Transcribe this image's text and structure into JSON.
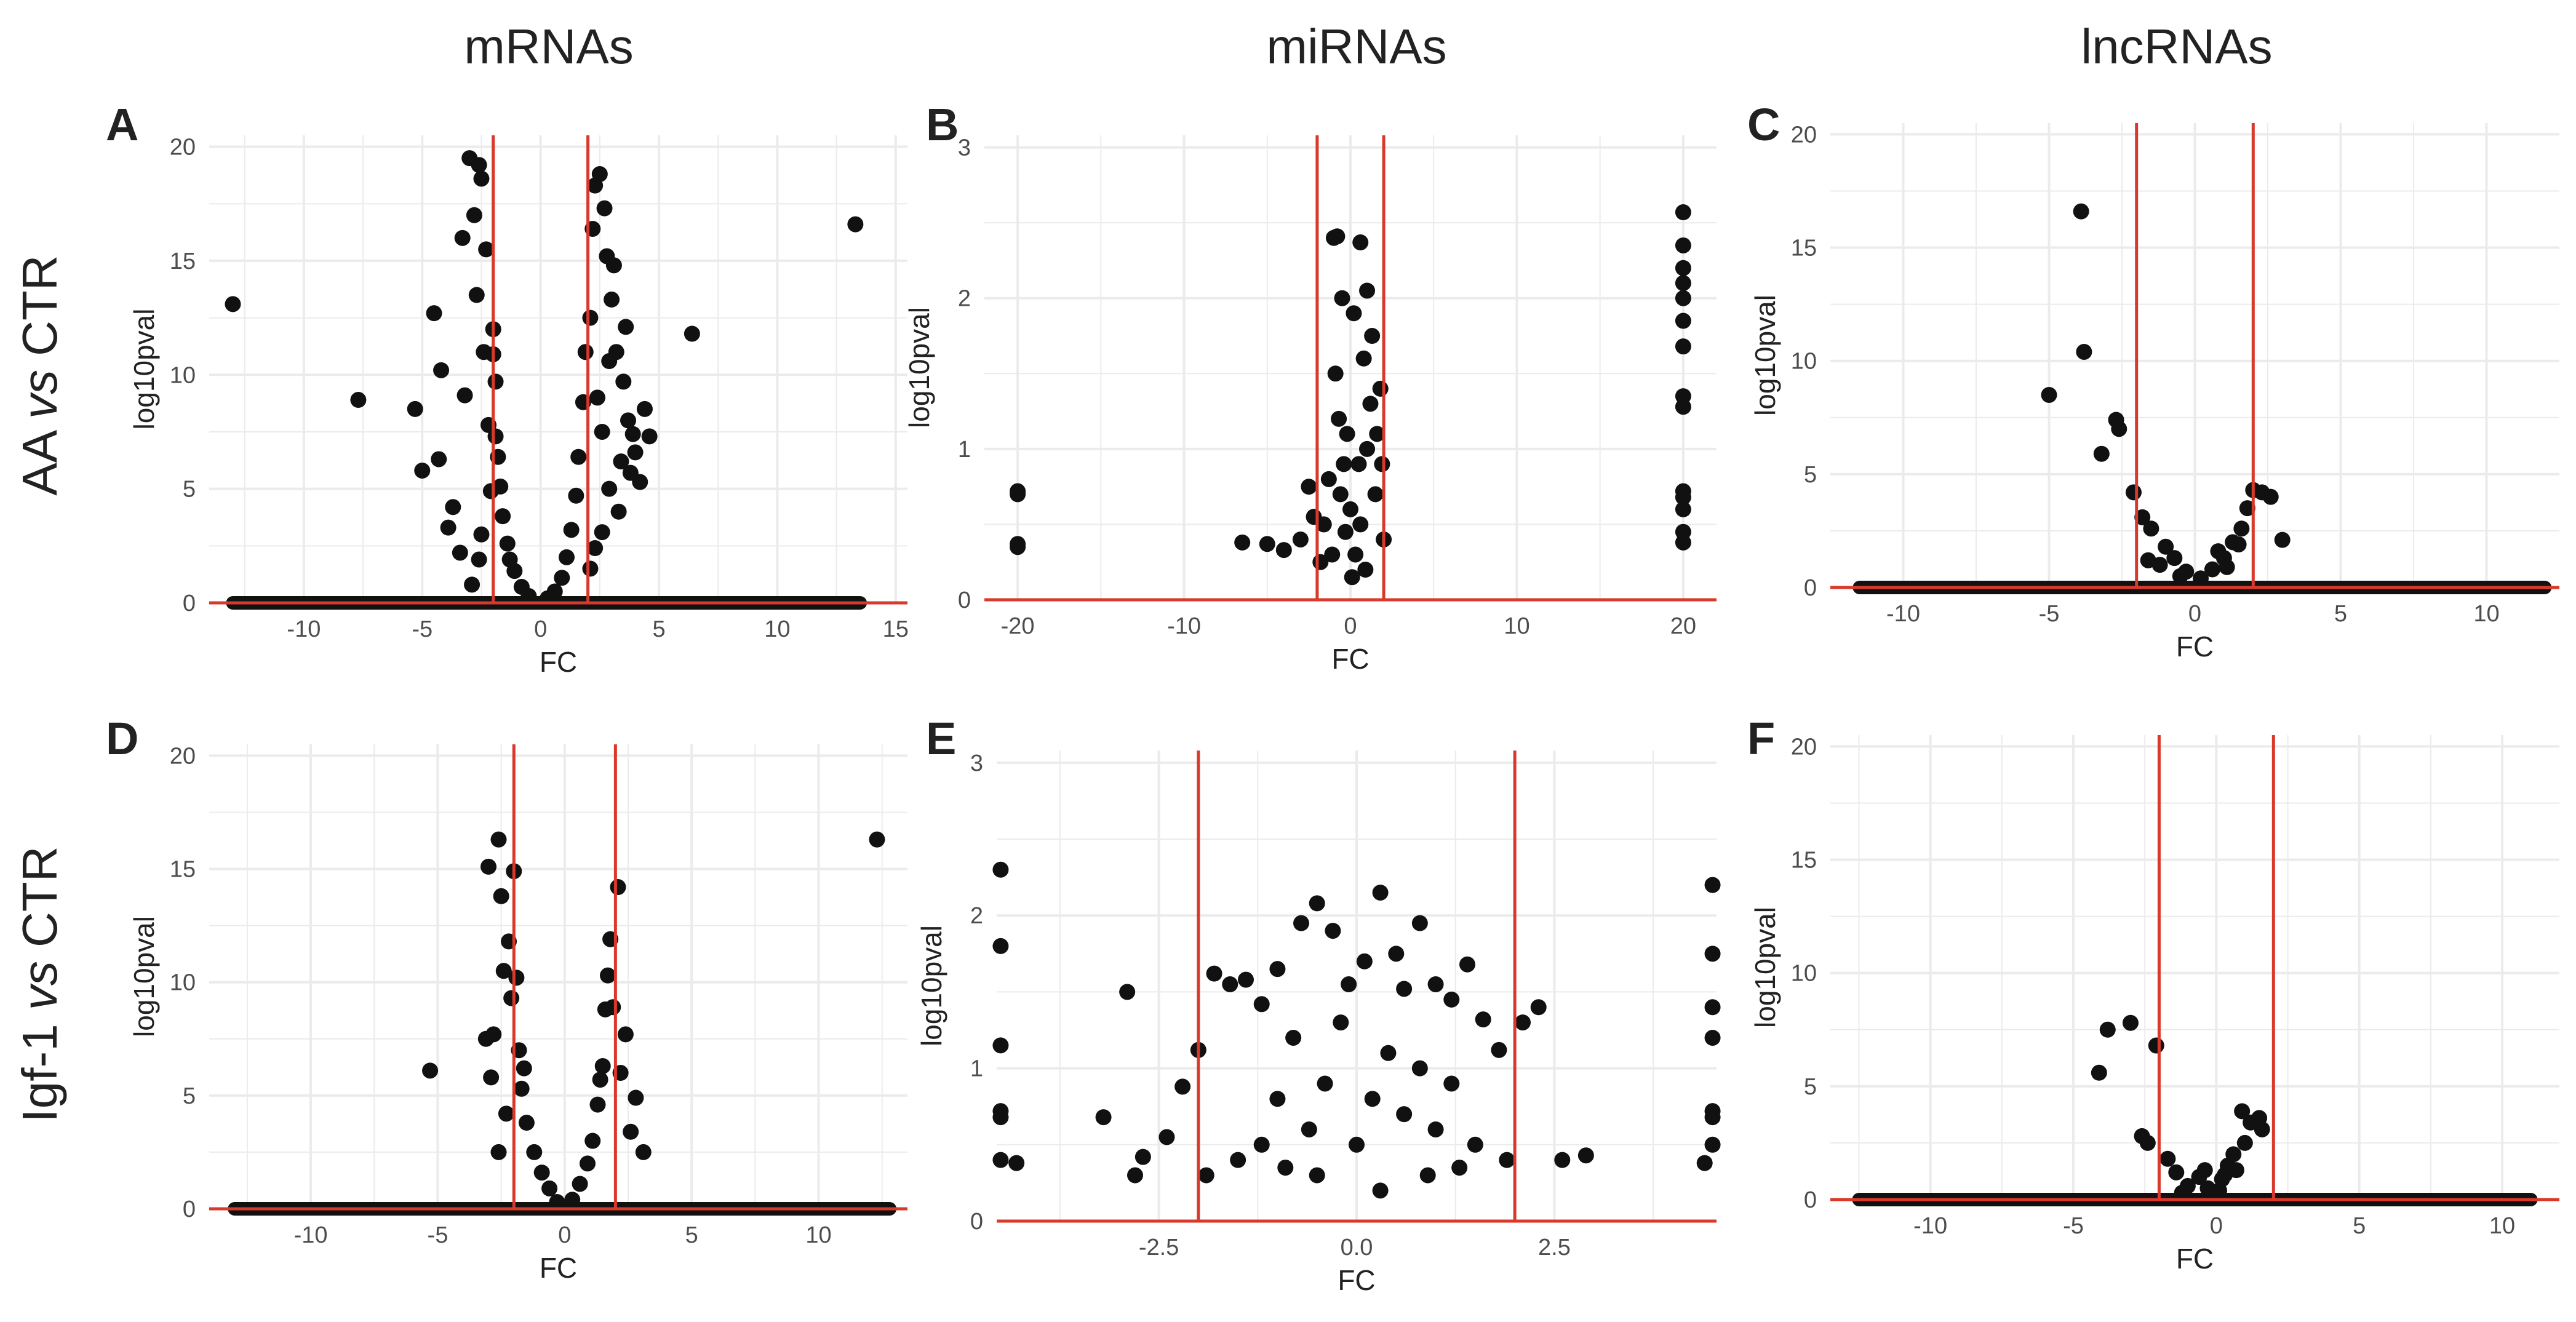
{
  "column_headers": [
    "mRNAs",
    "miRNAs",
    "lncRNAs"
  ],
  "row_headers": [
    {
      "pre": "AA ",
      "italic": "vs",
      "post": " CTR"
    },
    {
      "pre": "Igf-1 ",
      "italic": "vs",
      "post": " CTR"
    }
  ],
  "colors": {
    "points": "#111111",
    "threshold_lines": "#d9392b",
    "grid": "#ebebeb",
    "axis_text": "#4d4d4d"
  },
  "chart_data": [
    {
      "panel": "A",
      "type": "scatter",
      "xlabel": "FC",
      "ylabel": "log10pval",
      "xlim": [
        -14,
        15.5
      ],
      "ylim": [
        0,
        20.5
      ],
      "grid": true,
      "xticks": [
        -10,
        -5,
        0,
        5,
        10,
        15
      ],
      "xtick_labels": [
        "-10",
        "-5",
        "0",
        "5",
        "10",
        "15"
      ],
      "yticks": [
        0,
        5,
        10,
        15,
        20
      ],
      "ytick_labels": [
        "0",
        "5",
        "10",
        "15",
        "20"
      ],
      "vlines": [
        -2,
        2
      ],
      "hline": 0,
      "baseline_range": [
        -13,
        13.5
      ],
      "points": [
        [
          -13,
          13.1
        ],
        [
          -7.7,
          8.9
        ],
        [
          13.3,
          16.6
        ],
        [
          6.4,
          11.8
        ],
        [
          -5.3,
          8.5
        ],
        [
          -5.0,
          5.8
        ],
        [
          -4.5,
          12.7
        ],
        [
          -4.3,
          6.3
        ],
        [
          -4.2,
          10.2
        ],
        [
          -3.7,
          4.2
        ],
        [
          -3.3,
          16.0
        ],
        [
          -3.2,
          9.1
        ],
        [
          -3.0,
          19.5
        ],
        [
          -2.8,
          17.0
        ],
        [
          -2.7,
          13.5
        ],
        [
          -2.6,
          19.2
        ],
        [
          -2.5,
          18.6
        ],
        [
          -2.4,
          11.0
        ],
        [
          -2.3,
          15.5
        ],
        [
          -2.2,
          7.8
        ],
        [
          -2.1,
          4.9
        ],
        [
          -2.5,
          3.0
        ],
        [
          -2.6,
          1.9
        ],
        [
          -2.9,
          0.8
        ],
        [
          -3.4,
          2.2
        ],
        [
          -3.9,
          3.3
        ],
        [
          -2.0,
          12.0
        ],
        [
          -1.9,
          9.7
        ],
        [
          -1.8,
          6.4
        ],
        [
          -1.6,
          3.8
        ],
        [
          -1.4,
          2.6
        ],
        [
          -1.1,
          1.4
        ],
        [
          -0.8,
          0.7
        ],
        [
          -0.5,
          0.3
        ],
        [
          -1.3,
          1.9
        ],
        [
          -1.7,
          5.1
        ],
        [
          -1.9,
          7.3
        ],
        [
          -2.0,
          10.9
        ],
        [
          2.3,
          18.3
        ],
        [
          2.5,
          18.8
        ],
        [
          2.2,
          16.4
        ],
        [
          2.7,
          17.3
        ],
        [
          2.8,
          15.2
        ],
        [
          3.0,
          13.3
        ],
        [
          3.2,
          11.0
        ],
        [
          3.5,
          9.7
        ],
        [
          3.7,
          8.0
        ],
        [
          3.9,
          7.4
        ],
        [
          4.0,
          6.6
        ],
        [
          4.2,
          5.3
        ],
        [
          2.1,
          12.5
        ],
        [
          2.4,
          9.0
        ],
        [
          2.6,
          7.5
        ],
        [
          2.9,
          5.0
        ],
        [
          3.3,
          4.0
        ],
        [
          2.6,
          3.1
        ],
        [
          2.3,
          2.4
        ],
        [
          2.1,
          1.5
        ],
        [
          1.9,
          11.0
        ],
        [
          1.8,
          8.8
        ],
        [
          1.6,
          6.4
        ],
        [
          1.5,
          4.7
        ],
        [
          1.3,
          3.2
        ],
        [
          1.1,
          2.0
        ],
        [
          0.9,
          1.1
        ],
        [
          0.6,
          0.5
        ],
        [
          0.3,
          0.2
        ],
        [
          3.1,
          14.8
        ],
        [
          3.6,
          12.1
        ],
        [
          4.4,
          8.5
        ],
        [
          4.6,
          7.3
        ],
        [
          3.4,
          6.2
        ],
        [
          2.9,
          10.6
        ],
        [
          3.8,
          5.7
        ]
      ]
    },
    {
      "panel": "B",
      "type": "scatter",
      "xlabel": "FC",
      "ylabel": "log10pval",
      "xlim": [
        -22,
        22
      ],
      "ylim": [
        0,
        3.08
      ],
      "grid": true,
      "xticks": [
        -20,
        -10,
        0,
        10,
        20
      ],
      "xtick_labels": [
        "-20",
        "-10",
        "0",
        "10",
        "20"
      ],
      "yticks": [
        0,
        1,
        2,
        3
      ],
      "ytick_labels": [
        "0",
        "1",
        "2",
        "3"
      ],
      "vlines": [
        -2,
        2
      ],
      "hline": 0,
      "points": [
        [
          -20,
          0.72
        ],
        [
          -20,
          0.7
        ],
        [
          -20,
          0.37
        ],
        [
          -20,
          0.35
        ],
        [
          20,
          2.57
        ],
        [
          20,
          2.35
        ],
        [
          20,
          2.2
        ],
        [
          20,
          2.1
        ],
        [
          20,
          2.0
        ],
        [
          20,
          1.85
        ],
        [
          20,
          1.68
        ],
        [
          20,
          1.35
        ],
        [
          20,
          1.28
        ],
        [
          20,
          0.72
        ],
        [
          20,
          0.68
        ],
        [
          20,
          0.6
        ],
        [
          20,
          0.45
        ],
        [
          20,
          0.38
        ],
        [
          -6.5,
          0.38
        ],
        [
          -5,
          0.37
        ],
        [
          -4,
          0.33
        ],
        [
          -3,
          0.4
        ],
        [
          -2.5,
          0.75
        ],
        [
          -2.2,
          0.55
        ],
        [
          -1.8,
          0.25
        ],
        [
          -1.0,
          2.4
        ],
        [
          -0.8,
          2.41
        ],
        [
          -0.5,
          2.0
        ],
        [
          0.2,
          1.9
        ],
        [
          0.6,
          2.37
        ],
        [
          1.0,
          2.05
        ],
        [
          1.3,
          1.75
        ],
        [
          1.8,
          1.4
        ],
        [
          1.9,
          0.9
        ],
        [
          2.0,
          0.4
        ],
        [
          -0.9,
          1.5
        ],
        [
          -0.7,
          1.2
        ],
        [
          -0.4,
          0.9
        ],
        [
          0.0,
          0.6
        ],
        [
          0.3,
          0.3
        ],
        [
          0.6,
          0.5
        ],
        [
          1.0,
          1.0
        ],
        [
          1.2,
          1.3
        ],
        [
          0.8,
          1.6
        ],
        [
          -0.2,
          1.1
        ],
        [
          -1.3,
          0.8
        ],
        [
          -1.6,
          0.5
        ],
        [
          -1.1,
          0.3
        ],
        [
          0.1,
          0.15
        ],
        [
          1.5,
          0.7
        ],
        [
          -0.6,
          0.7
        ],
        [
          0.5,
          0.9
        ],
        [
          0.9,
          0.2
        ],
        [
          -0.3,
          0.45
        ],
        [
          1.6,
          1.1
        ]
      ]
    },
    {
      "panel": "C",
      "type": "scatter",
      "xlabel": "FC",
      "ylabel": "log10pval",
      "xlim": [
        -12.5,
        12.5
      ],
      "ylim": [
        0,
        20.5
      ],
      "grid": true,
      "xticks": [
        -10,
        -5,
        0,
        5,
        10
      ],
      "xtick_labels": [
        "-10",
        "-5",
        "0",
        "5",
        "10"
      ],
      "yticks": [
        0,
        5,
        10,
        15,
        20
      ],
      "ytick_labels": [
        "0",
        "5",
        "10",
        "15",
        "20"
      ],
      "vlines": [
        -2,
        2
      ],
      "hline": 0,
      "baseline_range": [
        -11.5,
        12
      ],
      "points": [
        [
          -3.9,
          16.6
        ],
        [
          -3.8,
          10.4
        ],
        [
          -5.0,
          8.5
        ],
        [
          -2.7,
          7.4
        ],
        [
          -2.6,
          7.0
        ],
        [
          -3.2,
          5.9
        ],
        [
          -2.1,
          4.2
        ],
        [
          -1.8,
          3.1
        ],
        [
          -1.5,
          2.6
        ],
        [
          -1.0,
          1.8
        ],
        [
          -0.7,
          1.3
        ],
        [
          -0.3,
          0.7
        ],
        [
          0.2,
          0.4
        ],
        [
          0.6,
          0.8
        ],
        [
          1.0,
          1.3
        ],
        [
          1.3,
          2.0
        ],
        [
          1.6,
          2.6
        ],
        [
          1.8,
          3.5
        ],
        [
          2.0,
          4.3
        ],
        [
          2.3,
          4.2
        ],
        [
          2.6,
          4.0
        ],
        [
          3.0,
          2.1
        ],
        [
          1.1,
          0.9
        ],
        [
          -1.2,
          1.0
        ],
        [
          0.8,
          1.6
        ],
        [
          -0.5,
          0.5
        ],
        [
          1.5,
          1.9
        ],
        [
          -1.6,
          1.2
        ]
      ]
    },
    {
      "panel": "D",
      "type": "scatter",
      "xlabel": "FC",
      "ylabel": "log10pval",
      "xlim": [
        -14,
        13.5
      ],
      "ylim": [
        0,
        20.5
      ],
      "grid": true,
      "xticks": [
        -10,
        -5,
        0,
        5,
        10
      ],
      "xtick_labels": [
        "-10",
        "-5",
        "0",
        "5",
        "10"
      ],
      "yticks": [
        0,
        5,
        10,
        15,
        20
      ],
      "ytick_labels": [
        "0",
        "5",
        "10",
        "15",
        "20"
      ],
      "vlines": [
        -2,
        2
      ],
      "hline": 0,
      "baseline_range": [
        -13,
        12.8
      ],
      "points": [
        [
          12.3,
          16.3
        ],
        [
          -5.3,
          6.1
        ],
        [
          -3.0,
          15.1
        ],
        [
          -2.6,
          16.3
        ],
        [
          -2.5,
          13.8
        ],
        [
          -2.0,
          14.9
        ],
        [
          -2.2,
          11.8
        ],
        [
          -2.4,
          10.5
        ],
        [
          -2.1,
          9.3
        ],
        [
          -1.9,
          10.2
        ],
        [
          -3.1,
          7.5
        ],
        [
          -2.8,
          7.7
        ],
        [
          -2.9,
          5.8
        ],
        [
          -2.6,
          2.5
        ],
        [
          -2.3,
          4.2
        ],
        [
          -1.8,
          7.0
        ],
        [
          -1.7,
          5.3
        ],
        [
          -1.5,
          3.8
        ],
        [
          -1.2,
          2.5
        ],
        [
          -0.9,
          1.6
        ],
        [
          -0.6,
          0.9
        ],
        [
          -0.3,
          0.3
        ],
        [
          2.1,
          14.2
        ],
        [
          1.8,
          11.9
        ],
        [
          1.7,
          10.3
        ],
        [
          1.6,
          8.8
        ],
        [
          2.4,
          7.7
        ],
        [
          1.9,
          8.9
        ],
        [
          2.8,
          4.9
        ],
        [
          3.1,
          2.5
        ],
        [
          2.6,
          3.4
        ],
        [
          1.5,
          6.3
        ],
        [
          1.3,
          4.6
        ],
        [
          1.1,
          3.0
        ],
        [
          0.9,
          2.0
        ],
        [
          0.6,
          1.1
        ],
        [
          0.3,
          0.4
        ],
        [
          -1.6,
          6.2
        ],
        [
          1.4,
          5.7
        ],
        [
          2.2,
          6.0
        ]
      ]
    },
    {
      "panel": "E",
      "type": "scatter",
      "xlabel": "FC",
      "ylabel": "log10pval",
      "xlim": [
        -4.55,
        4.55
      ],
      "ylim": [
        0,
        3.08
      ],
      "grid": true,
      "xticks": [
        -2.5,
        0,
        2.5
      ],
      "xtick_labels": [
        "-2.5",
        "0.0",
        "2.5"
      ],
      "yticks": [
        0,
        1,
        2,
        3
      ],
      "ytick_labels": [
        "0",
        "1",
        "2",
        "3"
      ],
      "vlines": [
        -2,
        2
      ],
      "hline": 0,
      "points": [
        [
          -4.5,
          2.3
        ],
        [
          -4.5,
          1.8
        ],
        [
          -4.5,
          1.15
        ],
        [
          -4.5,
          0.72
        ],
        [
          -4.5,
          0.68
        ],
        [
          -4.3,
          0.38
        ],
        [
          -4.5,
          0.4
        ],
        [
          4.5,
          2.2
        ],
        [
          4.5,
          1.75
        ],
        [
          4.5,
          1.4
        ],
        [
          4.5,
          1.2
        ],
        [
          4.5,
          0.72
        ],
        [
          4.5,
          0.68
        ],
        [
          4.5,
          0.5
        ],
        [
          4.4,
          0.38
        ],
        [
          -3.2,
          0.68
        ],
        [
          -2.9,
          1.5
        ],
        [
          -2.8,
          0.3
        ],
        [
          -2.7,
          0.42
        ],
        [
          -2.4,
          0.55
        ],
        [
          -2.2,
          0.88
        ],
        [
          -2.0,
          1.12
        ],
        [
          -1.8,
          1.62
        ],
        [
          -1.6,
          1.55
        ],
        [
          -1.4,
          1.58
        ],
        [
          -1.2,
          1.42
        ],
        [
          -1.0,
          1.65
        ],
        [
          -0.7,
          1.95
        ],
        [
          -0.5,
          2.08
        ],
        [
          -0.3,
          1.9
        ],
        [
          -0.1,
          1.55
        ],
        [
          0.1,
          1.7
        ],
        [
          0.3,
          2.15
        ],
        [
          0.5,
          1.75
        ],
        [
          0.6,
          1.52
        ],
        [
          0.8,
          1.95
        ],
        [
          1.0,
          1.55
        ],
        [
          1.2,
          1.45
        ],
        [
          1.4,
          1.68
        ],
        [
          1.6,
          1.32
        ],
        [
          1.8,
          1.12
        ],
        [
          2.1,
          1.3
        ],
        [
          2.3,
          1.4
        ],
        [
          2.6,
          0.4
        ],
        [
          2.9,
          0.43
        ],
        [
          -1.5,
          0.4
        ],
        [
          -1.0,
          0.8
        ],
        [
          -0.8,
          1.2
        ],
        [
          -0.6,
          0.6
        ],
        [
          -0.4,
          0.9
        ],
        [
          -0.2,
          1.3
        ],
        [
          0.0,
          0.5
        ],
        [
          0.2,
          0.8
        ],
        [
          0.4,
          1.1
        ],
        [
          0.6,
          0.7
        ],
        [
          0.8,
          1.0
        ],
        [
          1.0,
          0.6
        ],
        [
          1.2,
          0.9
        ],
        [
          1.5,
          0.5
        ],
        [
          1.9,
          0.4
        ],
        [
          -1.9,
          0.3
        ],
        [
          -1.2,
          0.5
        ],
        [
          0.9,
          0.3
        ],
        [
          -0.5,
          0.3
        ],
        [
          0.3,
          0.2
        ],
        [
          -0.9,
          0.35
        ],
        [
          1.3,
          0.35
        ]
      ]
    },
    {
      "panel": "F",
      "type": "scatter",
      "xlabel": "FC",
      "ylabel": "log10pval",
      "xlim": [
        -13.5,
        12
      ],
      "ylim": [
        0,
        20.5
      ],
      "grid": true,
      "xticks": [
        -10,
        -5,
        0,
        5,
        10
      ],
      "xtick_labels": [
        "-10",
        "-5",
        "0",
        "5",
        "10"
      ],
      "yticks": [
        0,
        5,
        10,
        15,
        20
      ],
      "ytick_labels": [
        "0",
        "5",
        "10",
        "15",
        "20"
      ],
      "vlines": [
        -2,
        2
      ],
      "hline": 0,
      "baseline_range": [
        -12.5,
        11
      ],
      "points": [
        [
          -3.0,
          7.8
        ],
        [
          -3.8,
          7.5
        ],
        [
          -2.1,
          6.8
        ],
        [
          -4.1,
          5.6
        ],
        [
          -2.6,
          2.8
        ],
        [
          -2.4,
          2.5
        ],
        [
          -1.7,
          1.8
        ],
        [
          -1.4,
          1.2
        ],
        [
          -1.0,
          0.6
        ],
        [
          -0.6,
          1.0
        ],
        [
          -0.3,
          0.5
        ],
        [
          0.2,
          0.9
        ],
        [
          0.4,
          1.5
        ],
        [
          0.6,
          2.0
        ],
        [
          0.9,
          3.9
        ],
        [
          1.2,
          3.4
        ],
        [
          1.5,
          3.6
        ],
        [
          1.6,
          3.1
        ],
        [
          0.7,
          1.3
        ],
        [
          -0.4,
          1.3
        ],
        [
          0.1,
          0.4
        ],
        [
          1.0,
          2.5
        ],
        [
          -1.2,
          0.3
        ],
        [
          0.3,
          1.1
        ]
      ]
    }
  ]
}
